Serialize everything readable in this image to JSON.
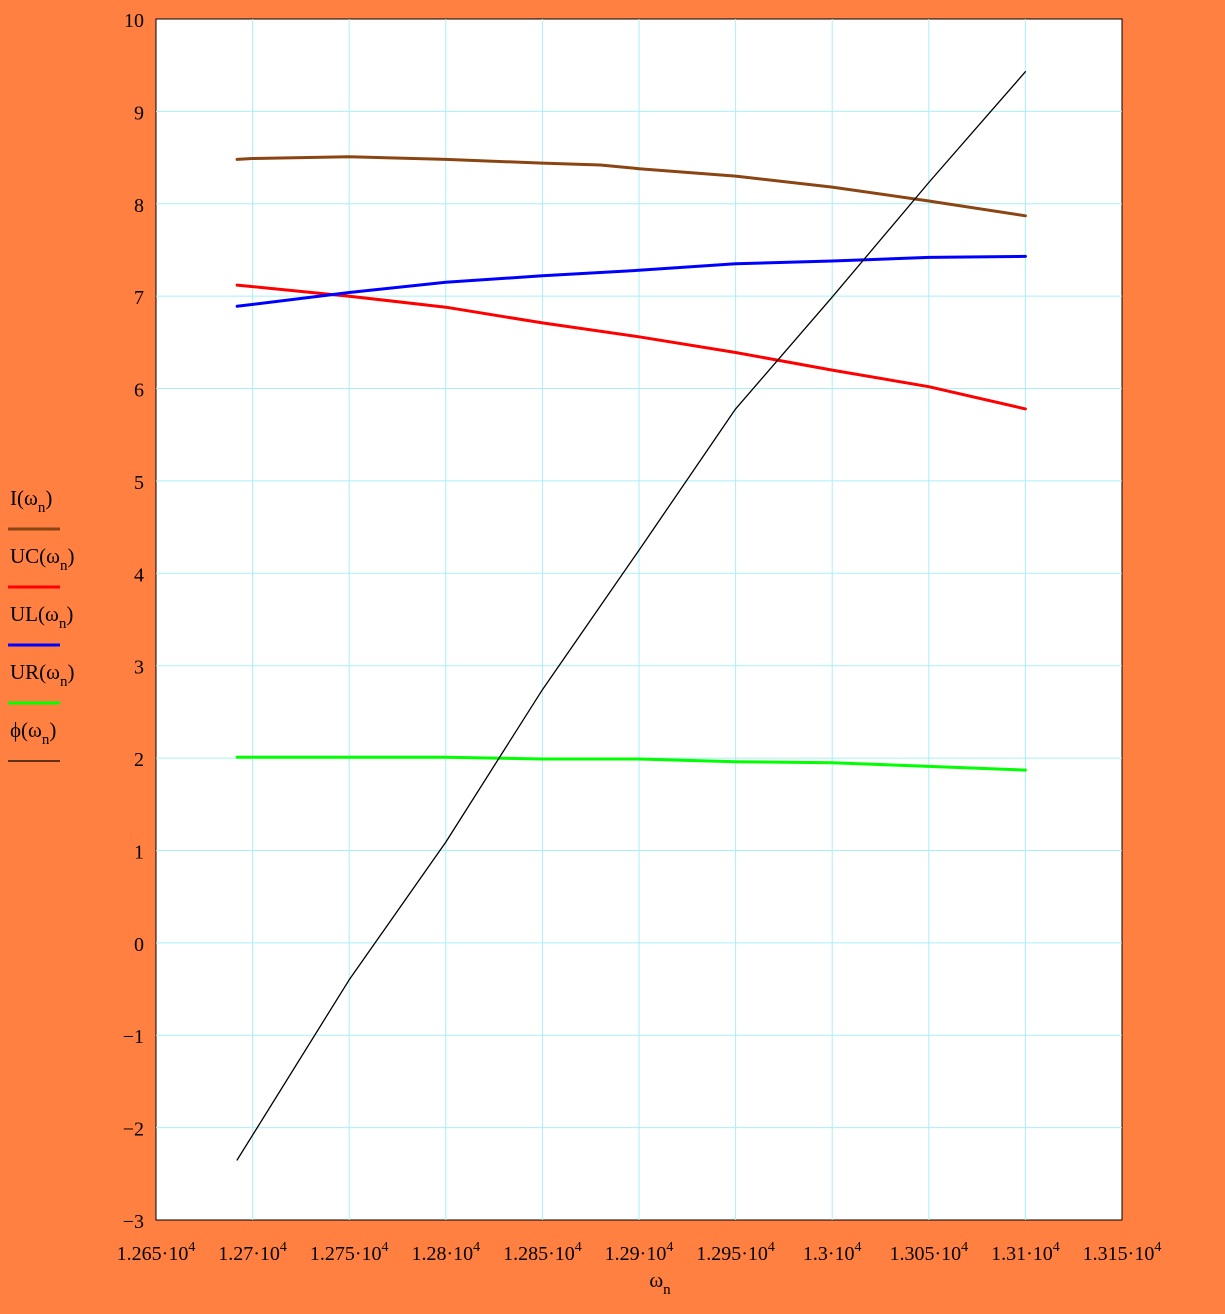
{
  "chart_data": {
    "type": "line",
    "xlabel": "ωn",
    "ylabel": "",
    "xlim": [
      12650,
      13150
    ],
    "ylim": [
      -3,
      10
    ],
    "grid": true,
    "legend_placement": "left",
    "x_ticks": [
      {
        "value": 12650,
        "mantissa": "1.265",
        "exp": "4"
      },
      {
        "value": 12700,
        "mantissa": "1.27",
        "exp": "4"
      },
      {
        "value": 12750,
        "mantissa": "1.275",
        "exp": "4"
      },
      {
        "value": 12800,
        "mantissa": "1.28",
        "exp": "4"
      },
      {
        "value": 12850,
        "mantissa": "1.285",
        "exp": "4"
      },
      {
        "value": 12900,
        "mantissa": "1.29",
        "exp": "4"
      },
      {
        "value": 12950,
        "mantissa": "1.295",
        "exp": "4"
      },
      {
        "value": 13000,
        "mantissa": "1.3",
        "exp": "4"
      },
      {
        "value": 13050,
        "mantissa": "1.305",
        "exp": "4"
      },
      {
        "value": 13100,
        "mantissa": "1.31",
        "exp": "4"
      },
      {
        "value": 13150,
        "mantissa": "1.315",
        "exp": "4"
      }
    ],
    "y_ticks": [
      {
        "value": 10,
        "label": "10"
      },
      {
        "value": 9,
        "label": "9"
      },
      {
        "value": 8,
        "label": "8"
      },
      {
        "value": 7,
        "label": "7"
      },
      {
        "value": 6,
        "label": "6"
      },
      {
        "value": 5,
        "label": "5"
      },
      {
        "value": 4,
        "label": "4"
      },
      {
        "value": 3,
        "label": "3"
      },
      {
        "value": 2,
        "label": "2"
      },
      {
        "value": 1,
        "label": "1"
      },
      {
        "value": 0,
        "label": "0"
      },
      {
        "value": -1,
        "label": "−1"
      },
      {
        "value": -2,
        "label": "−2"
      },
      {
        "value": -3,
        "label": "−3"
      }
    ],
    "series": [
      {
        "name": "I(ωn)",
        "fname": "I",
        "color": "#8B4513",
        "width": 3,
        "points": [
          [
            12692,
            8.48
          ],
          [
            12700,
            8.49
          ],
          [
            12750,
            8.51
          ],
          [
            12800,
            8.48
          ],
          [
            12850,
            8.44
          ],
          [
            12880,
            8.42
          ],
          [
            12900,
            8.38
          ],
          [
            12950,
            8.3
          ],
          [
            13000,
            8.18
          ],
          [
            13050,
            8.03
          ],
          [
            13100,
            7.87
          ]
        ]
      },
      {
        "name": "UC(ωn)",
        "fname": "UC",
        "color": "#FF0000",
        "width": 3,
        "points": [
          [
            12692,
            7.12
          ],
          [
            12750,
            7.0
          ],
          [
            12800,
            6.88
          ],
          [
            12850,
            6.71
          ],
          [
            12900,
            6.56
          ],
          [
            12950,
            6.39
          ],
          [
            13000,
            6.2
          ],
          [
            13050,
            6.02
          ],
          [
            13100,
            5.78
          ]
        ]
      },
      {
        "name": "UL(ωn)",
        "fname": "UL",
        "color": "#0000FF",
        "width": 3,
        "points": [
          [
            12692,
            6.89
          ],
          [
            12750,
            7.04
          ],
          [
            12800,
            7.15
          ],
          [
            12850,
            7.22
          ],
          [
            12900,
            7.28
          ],
          [
            12950,
            7.35
          ],
          [
            13000,
            7.38
          ],
          [
            13050,
            7.42
          ],
          [
            13100,
            7.43
          ]
        ]
      },
      {
        "name": "UR(ωn)",
        "fname": "UR",
        "color": "#00FF00",
        "width": 3,
        "points": [
          [
            12692,
            2.01
          ],
          [
            12750,
            2.01
          ],
          [
            12800,
            2.01
          ],
          [
            12850,
            1.99
          ],
          [
            12900,
            1.99
          ],
          [
            12950,
            1.96
          ],
          [
            13000,
            1.95
          ],
          [
            13050,
            1.91
          ],
          [
            13100,
            1.87
          ]
        ]
      },
      {
        "name": "ϕ(ωn)",
        "fname": "ϕ",
        "color": "#000000",
        "width": 1.3,
        "points": [
          [
            12692,
            -2.35
          ],
          [
            12750,
            -0.4
          ],
          [
            12800,
            1.09
          ],
          [
            12850,
            2.74
          ],
          [
            12900,
            4.25
          ],
          [
            12950,
            5.78
          ],
          [
            13000,
            6.99
          ],
          [
            13050,
            8.23
          ],
          [
            13100,
            9.43
          ]
        ]
      }
    ]
  }
}
